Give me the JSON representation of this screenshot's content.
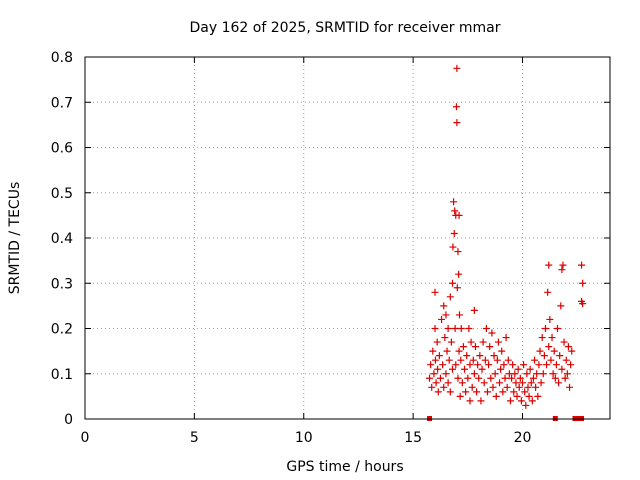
{
  "chart_data": {
    "type": "scatter",
    "title": "Day 162 of 2025, SRMTID for receiver mmar",
    "xlabel": "GPS time / hours",
    "ylabel": "SRMTID / TECUs",
    "xlim": [
      0,
      24
    ],
    "ylim": [
      0,
      0.8
    ],
    "x_ticks": [
      0,
      5,
      10,
      15,
      20
    ],
    "y_ticks": [
      0,
      0.1,
      0.2,
      0.3,
      0.4,
      0.5,
      0.6,
      0.7,
      0.8
    ],
    "x_tick_labels": [
      "0",
      "5",
      "10",
      "15",
      "20"
    ],
    "y_tick_labels": [
      "0",
      "0.1",
      "0.2",
      "0.3",
      "0.4",
      "0.5",
      "0.6",
      "0.7",
      "0.8"
    ],
    "grid": true,
    "marker": "+",
    "color": "#dd0000",
    "series": [
      {
        "name": "SRMTID",
        "points": [
          [
            15.75,
            0.09
          ],
          [
            15.8,
            0.12
          ],
          [
            15.85,
            0.07
          ],
          [
            15.9,
            0.15
          ],
          [
            15.95,
            0.1
          ],
          [
            16.0,
            0.28
          ],
          [
            16.0,
            0.2
          ],
          [
            16.02,
            0.13
          ],
          [
            16.05,
            0.08
          ],
          [
            16.1,
            0.17
          ],
          [
            16.12,
            0.11
          ],
          [
            16.15,
            0.06
          ],
          [
            16.2,
            0.14
          ],
          [
            16.25,
            0.09
          ],
          [
            16.3,
            0.22
          ],
          [
            16.35,
            0.12
          ],
          [
            16.4,
            0.25
          ],
          [
            16.4,
            0.07
          ],
          [
            16.45,
            0.18
          ],
          [
            16.5,
            0.1
          ],
          [
            16.5,
            0.23
          ],
          [
            16.55,
            0.15
          ],
          [
            16.6,
            0.08
          ],
          [
            16.6,
            0.2
          ],
          [
            16.65,
            0.13
          ],
          [
            16.7,
            0.27
          ],
          [
            16.7,
            0.06
          ],
          [
            16.75,
            0.17
          ],
          [
            16.8,
            0.11
          ],
          [
            16.8,
            0.3
          ],
          [
            16.82,
            0.38
          ],
          [
            16.85,
            0.48
          ],
          [
            16.88,
            0.41
          ],
          [
            16.9,
            0.46
          ],
          [
            16.92,
            0.2
          ],
          [
            16.95,
            0.45
          ],
          [
            16.95,
            0.12
          ],
          [
            16.98,
            0.69
          ],
          [
            17.0,
            0.775
          ],
          [
            17.0,
            0.655
          ],
          [
            17.02,
            0.29
          ],
          [
            17.05,
            0.37
          ],
          [
            17.05,
            0.09
          ],
          [
            17.08,
            0.32
          ],
          [
            17.1,
            0.45
          ],
          [
            17.1,
            0.15
          ],
          [
            17.12,
            0.23
          ],
          [
            17.15,
            0.05
          ],
          [
            17.18,
            0.13
          ],
          [
            17.2,
            0.2
          ],
          [
            17.25,
            0.08
          ],
          [
            17.3,
            0.16
          ],
          [
            17.35,
            0.11
          ],
          [
            17.4,
            0.06
          ],
          [
            17.45,
            0.14
          ],
          [
            17.5,
            0.09
          ],
          [
            17.55,
            0.2
          ],
          [
            17.6,
            0.12
          ],
          [
            17.6,
            0.04
          ],
          [
            17.65,
            0.17
          ],
          [
            17.7,
            0.07
          ],
          [
            17.75,
            0.13
          ],
          [
            17.8,
            0.24
          ],
          [
            17.8,
            0.1
          ],
          [
            17.85,
            0.16
          ],
          [
            17.9,
            0.06
          ],
          [
            17.95,
            0.12
          ],
          [
            18.0,
            0.09
          ],
          [
            18.05,
            0.14
          ],
          [
            18.1,
            0.04
          ],
          [
            18.15,
            0.11
          ],
          [
            18.2,
            0.17
          ],
          [
            18.25,
            0.08
          ],
          [
            18.3,
            0.13
          ],
          [
            18.35,
            0.2
          ],
          [
            18.4,
            0.06
          ],
          [
            18.45,
            0.12
          ],
          [
            18.5,
            0.16
          ],
          [
            18.55,
            0.09
          ],
          [
            18.6,
            0.19
          ],
          [
            18.65,
            0.07
          ],
          [
            18.7,
            0.14
          ],
          [
            18.75,
            0.1
          ],
          [
            18.8,
            0.05
          ],
          [
            18.85,
            0.13
          ],
          [
            18.9,
            0.17
          ],
          [
            18.95,
            0.08
          ],
          [
            19.0,
            0.11
          ],
          [
            19.05,
            0.15
          ],
          [
            19.1,
            0.06
          ],
          [
            19.15,
            0.12
          ],
          [
            19.2,
            0.09
          ],
          [
            19.25,
            0.18
          ],
          [
            19.3,
            0.07
          ],
          [
            19.35,
            0.13
          ],
          [
            19.4,
            0.1
          ],
          [
            19.45,
            0.04
          ],
          [
            19.5,
            0.09
          ],
          [
            19.55,
            0.12
          ],
          [
            19.6,
            0.06
          ],
          [
            19.65,
            0.1
          ],
          [
            19.7,
            0.08
          ],
          [
            19.75,
            0.05
          ],
          [
            19.8,
            0.11
          ],
          [
            19.85,
            0.07
          ],
          [
            19.9,
            0.09
          ],
          [
            19.95,
            0.04
          ],
          [
            20.0,
            0.08
          ],
          [
            20.05,
            0.12
          ],
          [
            20.1,
            0.06
          ],
          [
            20.15,
            0.03
          ],
          [
            20.2,
            0.1
          ],
          [
            20.25,
            0.07
          ],
          [
            20.3,
            0.05
          ],
          [
            20.35,
            0.11
          ],
          [
            20.4,
            0.08
          ],
          [
            20.45,
            0.04
          ],
          [
            20.5,
            0.09
          ],
          [
            20.55,
            0.13
          ],
          [
            20.6,
            0.07
          ],
          [
            20.65,
            0.1
          ],
          [
            20.7,
            0.05
          ],
          [
            20.75,
            0.12
          ],
          [
            20.8,
            0.15
          ],
          [
            20.85,
            0.08
          ],
          [
            20.9,
            0.18
          ],
          [
            20.95,
            0.1
          ],
          [
            21.0,
            0.14
          ],
          [
            21.05,
            0.2
          ],
          [
            21.1,
            0.12
          ],
          [
            21.15,
            0.28
          ],
          [
            21.2,
            0.34
          ],
          [
            21.2,
            0.16
          ],
          [
            21.25,
            0.22
          ],
          [
            21.3,
            0.13
          ],
          [
            21.35,
            0.18
          ],
          [
            21.4,
            0.1
          ],
          [
            21.45,
            0.15
          ],
          [
            21.5,
            0.09
          ],
          [
            21.55,
            0.12
          ],
          [
            21.6,
            0.2
          ],
          [
            21.65,
            0.08
          ],
          [
            21.7,
            0.14
          ],
          [
            21.75,
            0.25
          ],
          [
            21.8,
            0.33
          ],
          [
            21.8,
            0.11
          ],
          [
            21.85,
            0.34
          ],
          [
            21.9,
            0.17
          ],
          [
            21.95,
            0.09
          ],
          [
            22.0,
            0.13
          ],
          [
            22.05,
            0.1
          ],
          [
            22.1,
            0.16
          ],
          [
            22.15,
            0.07
          ],
          [
            22.2,
            0.12
          ],
          [
            22.25,
            0.15
          ],
          [
            22.7,
            0.34
          ],
          [
            22.75,
            0.3
          ],
          [
            22.7,
            0.26
          ],
          [
            22.75,
            0.255
          ]
        ],
        "baseline_markers": [
          15.75,
          21.5,
          22.4,
          22.55,
          22.7
        ]
      }
    ]
  }
}
